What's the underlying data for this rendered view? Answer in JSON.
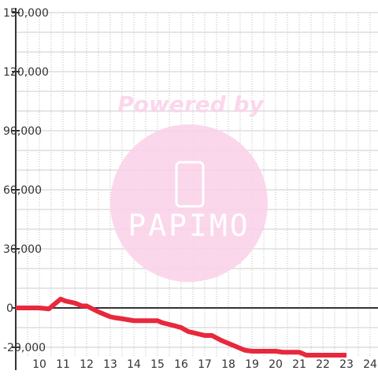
{
  "chart_data": {
    "type": "line",
    "x": [
      9,
      10,
      10.4,
      10.9,
      11.1,
      11.5,
      11.8,
      12,
      12.5,
      13,
      13.2,
      13.5,
      14,
      14.5,
      15,
      15.2,
      15.7,
      16,
      16.3,
      17,
      17.3,
      17.7,
      18,
      18.3,
      18.7,
      19,
      20,
      20.3,
      21,
      21.3,
      22,
      23
    ],
    "series": [
      {
        "color": "#e8283c",
        "values": [
          0,
          0,
          -500,
          4500,
          3500,
          2500,
          1000,
          1000,
          -2000,
          -4500,
          -5000,
          -5500,
          -6500,
          -6500,
          -6500,
          -7500,
          -9000,
          -10000,
          -12000,
          -14000,
          -14000,
          -16500,
          -18000,
          -19500,
          -21500,
          -22000,
          -22000,
          -22500,
          -22500,
          -24000,
          -24000,
          -24000
        ]
      }
    ],
    "xlim": [
      9,
      24.4
    ],
    "xticks": [
      10,
      11,
      12,
      13,
      14,
      15,
      16,
      17,
      18,
      19,
      20,
      21,
      22,
      23,
      24
    ],
    "ylim": [
      -25000,
      150000
    ],
    "yticks": [
      {
        "value": -20000,
        "label": "-20,000"
      },
      0,
      {
        "value": 30000,
        "label": "30,000"
      },
      {
        "value": 60000,
        "label": "60,000"
      },
      {
        "value": 90000,
        "label": "90,000"
      },
      {
        "value": 120000,
        "label": "120,000"
      },
      {
        "value": 150000,
        "label": "150,000"
      }
    ],
    "ygrid": [
      -20000,
      -10000,
      10000,
      20000,
      30000,
      40000,
      50000,
      60000,
      70000,
      80000,
      90000,
      100000,
      110000,
      120000,
      130000,
      140000,
      150000
    ],
    "xgrid": [
      9.5,
      10,
      10.5,
      11,
      11.5,
      12,
      12.5,
      13,
      13.5,
      14,
      14.5,
      15,
      15.5,
      16,
      16.5,
      17,
      17.5,
      18,
      18.5,
      19,
      19.5,
      20,
      20.5,
      21,
      21.5,
      22,
      22.5,
      23,
      23.5,
      24
    ],
    "grid": true
  },
  "watermark": {
    "line1": "Powered by",
    "line2": "PAPIMO"
  }
}
